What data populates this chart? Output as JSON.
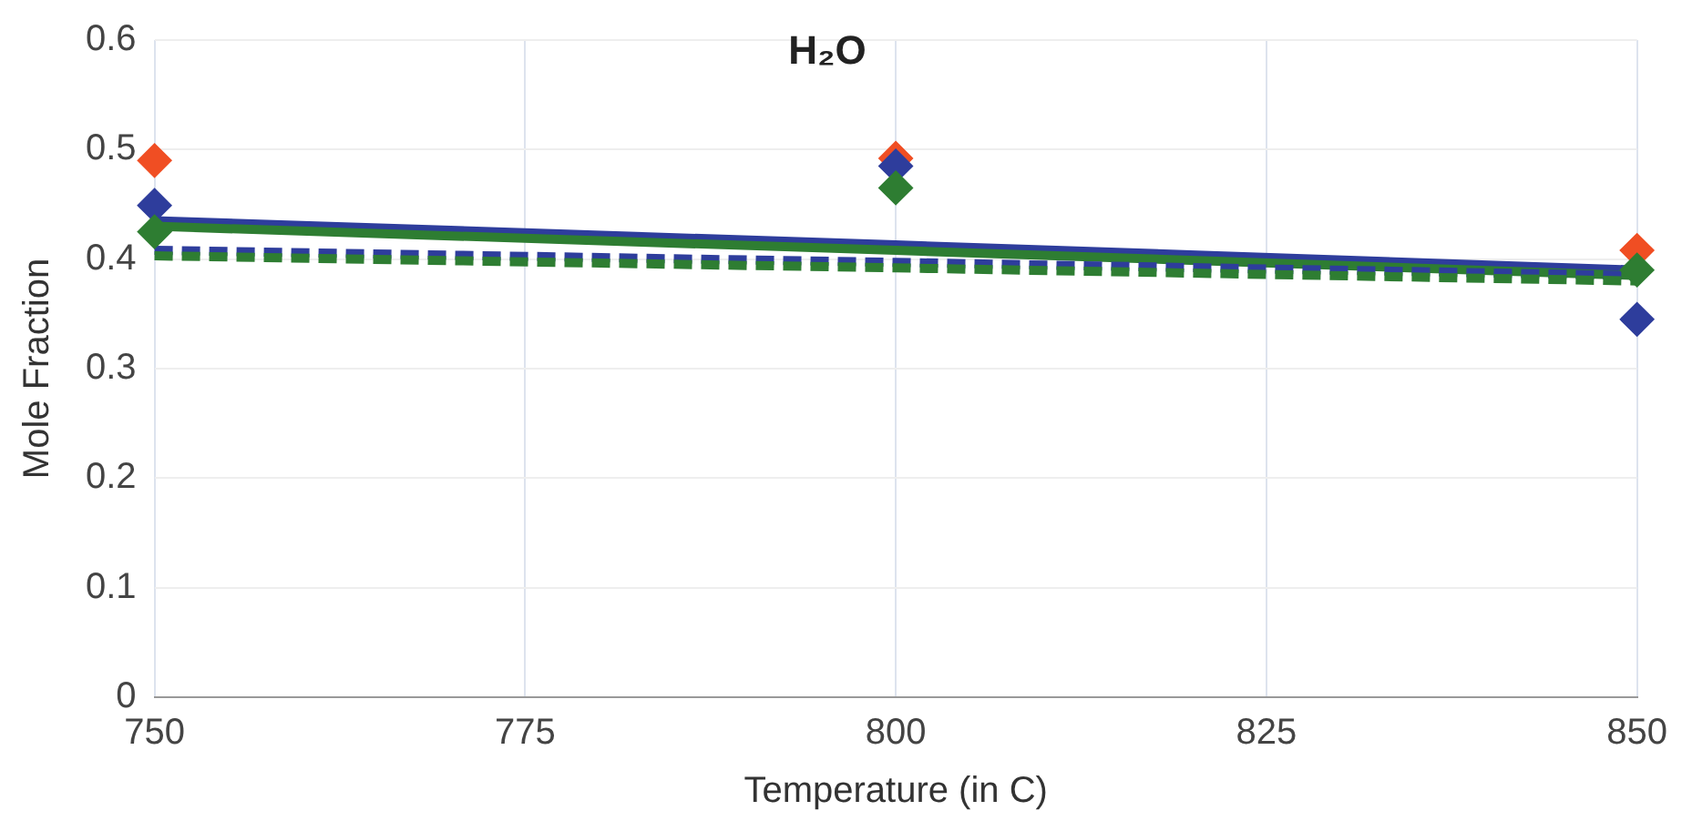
{
  "chart_data": {
    "type": "scatter",
    "title": "H₂O",
    "xlabel": "Temperature (in C)",
    "ylabel": "Mole Fraction",
    "x": [
      750,
      800,
      850
    ],
    "xlim": [
      750,
      850
    ],
    "xticks": [
      750,
      775,
      800,
      825,
      850
    ],
    "ylim": [
      0,
      0.6
    ],
    "yticks": [
      0,
      0.1,
      0.2,
      0.3,
      0.4,
      0.5,
      0.6
    ],
    "grid": true,
    "legend": false,
    "marker": "diamond",
    "series": [
      {
        "type": "line",
        "color": "#2e3d9c",
        "values": [
          0.435,
          0.413,
          0.39
        ],
        "line_style": "solid",
        "marker": "none"
      },
      {
        "type": "line",
        "color": "#2e7d32",
        "values": [
          0.43,
          0.408,
          0.385
        ],
        "line_style": "solid",
        "marker": "none"
      },
      {
        "type": "line",
        "color": "#2e3d9c",
        "values": [
          0.408,
          0.397,
          0.385
        ],
        "line_style": "dashed",
        "marker": "none"
      },
      {
        "type": "line",
        "color": "#2e7d32",
        "values": [
          0.403,
          0.392,
          0.38
        ],
        "line_style": "dashed",
        "marker": "none"
      },
      {
        "color": "#f04e23",
        "values": [
          0.49,
          0.492,
          0.408
        ]
      },
      {
        "color": "#2e3d9c",
        "values": [
          0.449,
          0.485,
          0.345
        ]
      },
      {
        "color": "#2e7d32",
        "values": [
          0.425,
          0.465,
          0.39
        ]
      }
    ]
  }
}
